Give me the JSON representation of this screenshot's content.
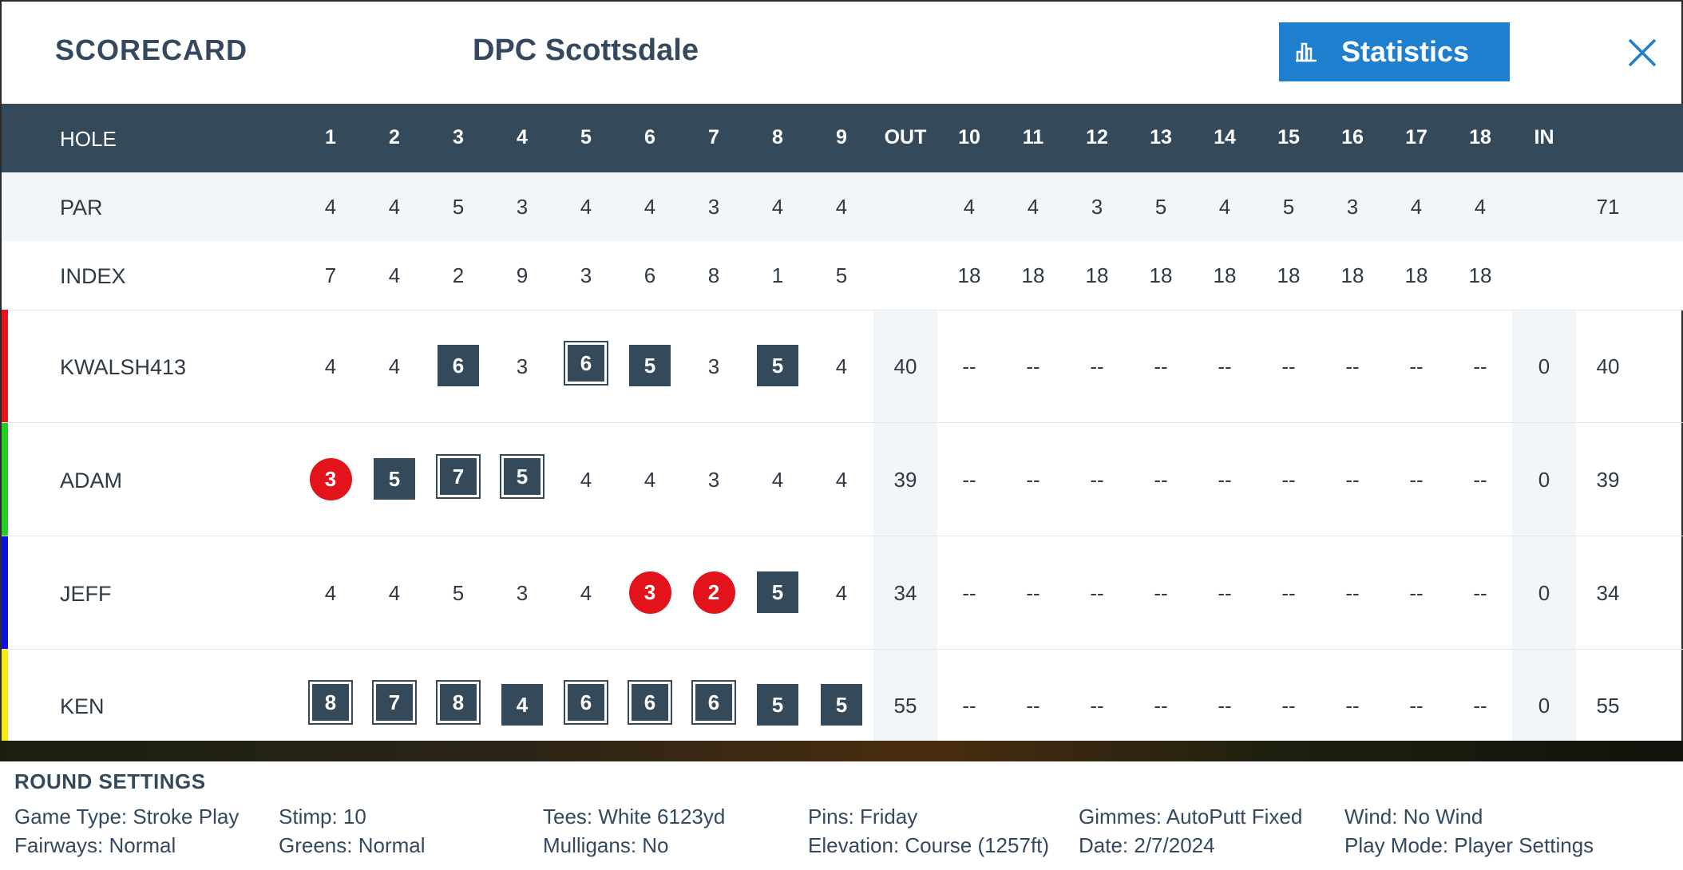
{
  "header": {
    "title": "SCORECARD",
    "course": "DPC Scottsdale",
    "statistics_label": "Statistics"
  },
  "table": {
    "hole_label": "HOLE",
    "columns": [
      "1",
      "2",
      "3",
      "4",
      "5",
      "6",
      "7",
      "8",
      "9",
      "OUT",
      "10",
      "11",
      "12",
      "13",
      "14",
      "15",
      "16",
      "17",
      "18",
      "IN",
      ""
    ],
    "par": {
      "label": "PAR",
      "values": [
        "4",
        "4",
        "5",
        "3",
        "4",
        "4",
        "3",
        "4",
        "4",
        "",
        "4",
        "4",
        "3",
        "5",
        "4",
        "5",
        "3",
        "4",
        "4",
        "",
        "71"
      ]
    },
    "index": {
      "label": "INDEX",
      "values": [
        "7",
        "4",
        "2",
        "9",
        "3",
        "6",
        "8",
        "1",
        "5",
        "",
        "18",
        "18",
        "18",
        "18",
        "18",
        "18",
        "18",
        "18",
        "18",
        "",
        ""
      ]
    },
    "players": [
      {
        "name": "KWALSH413",
        "color": "#e8141c",
        "scores": [
          "4",
          "4",
          "6",
          "3",
          "6",
          "5",
          "3",
          "5",
          "4",
          "40",
          "--",
          "--",
          "--",
          "--",
          "--",
          "--",
          "--",
          "--",
          "--",
          "0",
          "40"
        ],
        "styles": [
          "",
          "",
          "sq",
          "",
          "dsq",
          "sq",
          "",
          "sq",
          "",
          "",
          "",
          "",
          "",
          "",
          "",
          "",
          "",
          "",
          "",
          "",
          ""
        ]
      },
      {
        "name": "ADAM",
        "color": "#22d022",
        "scores": [
          "3",
          "5",
          "7",
          "5",
          "4",
          "4",
          "3",
          "4",
          "4",
          "39",
          "--",
          "--",
          "--",
          "--",
          "--",
          "--",
          "--",
          "--",
          "--",
          "0",
          "39"
        ],
        "styles": [
          "circ",
          "sq",
          "dsq",
          "dsq",
          "",
          "",
          "",
          "",
          "",
          "",
          "",
          "",
          "",
          "",
          "",
          "",
          "",
          "",
          "",
          "",
          ""
        ]
      },
      {
        "name": "JEFF",
        "color": "#1010e0",
        "scores": [
          "4",
          "4",
          "5",
          "3",
          "4",
          "3",
          "2",
          "5",
          "4",
          "34",
          "--",
          "--",
          "--",
          "--",
          "--",
          "--",
          "--",
          "--",
          "--",
          "0",
          "34"
        ],
        "styles": [
          "",
          "",
          "",
          "",
          "",
          "circ",
          "circ",
          "sq",
          "",
          "",
          "",
          "",
          "",
          "",
          "",
          "",
          "",
          "",
          "",
          "",
          ""
        ]
      },
      {
        "name": "KEN",
        "color": "#f2ea12",
        "scores": [
          "8",
          "7",
          "8",
          "4",
          "6",
          "6",
          "6",
          "5",
          "5",
          "55",
          "--",
          "--",
          "--",
          "--",
          "--",
          "--",
          "--",
          "--",
          "--",
          "0",
          "55"
        ],
        "styles": [
          "dsq",
          "dsq",
          "dsq",
          "sq",
          "dsq",
          "dsq",
          "dsq",
          "sq",
          "sq",
          "",
          "",
          "",
          "",
          "",
          "",
          "",
          "",
          "",
          "",
          "",
          ""
        ]
      }
    ]
  },
  "round_settings": {
    "title": "ROUND SETTINGS",
    "items": [
      "Game Type: Stroke Play",
      "Fairways: Normal",
      "Stimp: 10",
      "Greens: Normal",
      "Tees: White 6123yd",
      "Mulligans: No",
      "Pins: Friday",
      "Elevation: Course (1257ft)",
      "Gimmes: AutoPutt Fixed",
      "Date: 2/7/2024",
      "Wind: No Wind",
      "Play Mode: Player Settings"
    ]
  },
  "icons": {
    "statistics": "bar-chart-icon",
    "close": "close-icon"
  }
}
